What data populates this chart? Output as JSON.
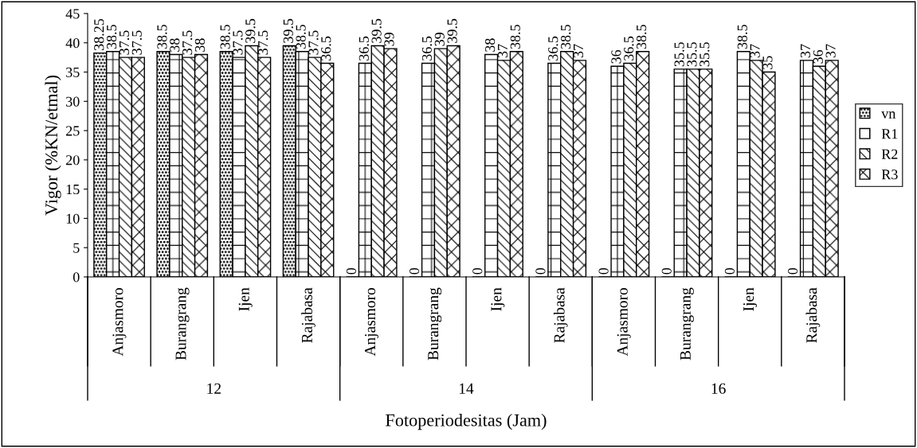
{
  "chart_data": {
    "type": "bar",
    "xlabel": "Fotoperiodesitas (Jam)",
    "ylabel": "Vigor (%KN/etmal)",
    "categories": [
      "Anjasmoro",
      "Burangrang",
      "Ijen",
      "Rajabasa",
      "Anjasmoro",
      "Burangrang",
      "Ijen",
      "Rajabasa",
      "Anjasmoro",
      "Burangrang",
      "Ijen",
      "Rajabasa"
    ],
    "annotations": [
      "12",
      "14",
      "16"
    ],
    "series": [
      {
        "name": "vn",
        "color": "#000000",
        "values": [
          38.25,
          38.5,
          38.5,
          39.5,
          0,
          0,
          0,
          0,
          0,
          0,
          0,
          0
        ]
      },
      {
        "name": "R1",
        "color": "#000000",
        "values": [
          38.5,
          38,
          37.5,
          38.5,
          36.5,
          36.5,
          38,
          36.5,
          36,
          35.5,
          38.5,
          37
        ]
      },
      {
        "name": "R2",
        "color": "#000000",
        "values": [
          37.5,
          37.5,
          39.5,
          37.5,
          39.5,
          39,
          37,
          38.5,
          36.5,
          35.5,
          37,
          36
        ]
      },
      {
        "name": "R3",
        "color": "#000000",
        "values": [
          37.5,
          38,
          37.5,
          36.5,
          39,
          39.5,
          38.5,
          37,
          38.5,
          35.5,
          35,
          37
        ]
      }
    ],
    "ylim": [
      0,
      45
    ],
    "yticks": [
      0,
      5,
      10,
      15,
      20,
      25,
      30,
      35,
      40,
      45
    ],
    "data_labels": true,
    "legend": "right",
    "grid": false
  }
}
